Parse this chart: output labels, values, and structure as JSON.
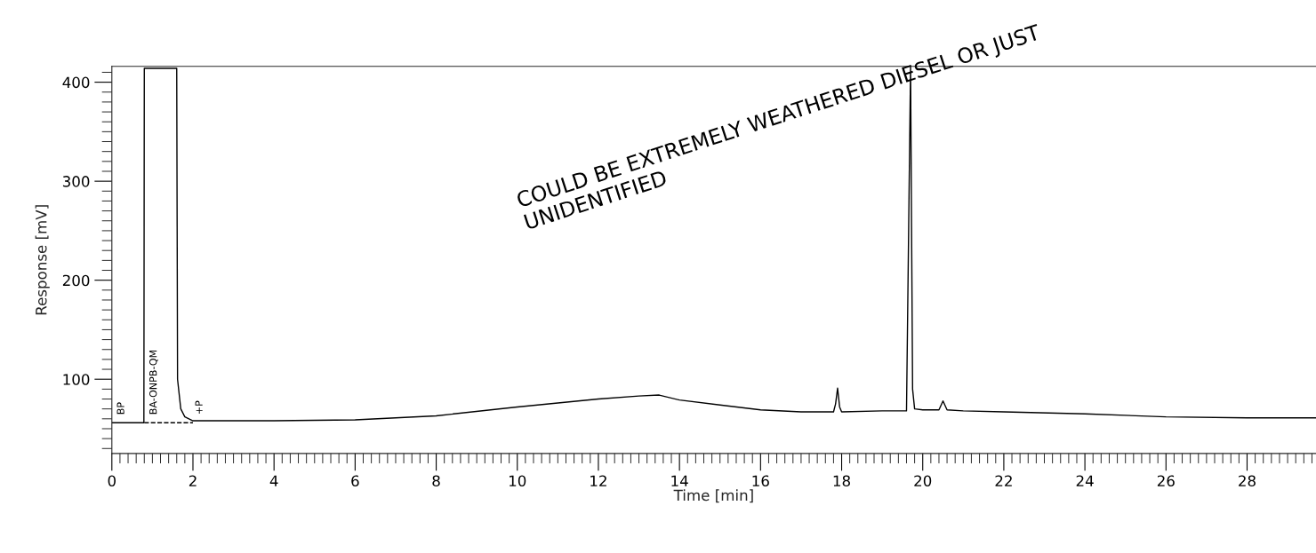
{
  "chart_data": {
    "type": "line",
    "xlabel": "Time [min]",
    "ylabel": "Response [mV]",
    "xlim": [
      0,
      29.7
    ],
    "xticks": [
      0,
      2,
      4,
      6,
      8,
      10,
      12,
      14,
      16,
      18,
      20,
      22,
      24,
      26,
      28
    ],
    "ylim": [
      25,
      416
    ],
    "yticks": [
      100,
      200,
      300,
      400
    ],
    "grid": false,
    "legend": false,
    "marker": "none",
    "series": [
      {
        "color": "#000000",
        "line_style": "solid",
        "x": [
          0,
          0.79,
          0.8,
          0.82,
          1.6,
          1.62,
          1.7,
          1.8,
          2,
          4,
          6,
          8,
          10,
          11,
          12,
          13,
          13.5,
          14,
          15,
          16,
          17,
          17.8,
          17.85,
          17.9,
          17.95,
          18.0,
          19,
          19.6,
          19.7,
          19.75,
          19.8,
          20,
          20.4,
          20.5,
          20.6,
          21,
          22,
          24,
          26,
          28,
          29.7
        ],
        "values": [
          56,
          56,
          414,
          414,
          414,
          100,
          70,
          62,
          58,
          58,
          59,
          63,
          72,
          76,
          80,
          83,
          84,
          79,
          74,
          69,
          67,
          67,
          75,
          91,
          72,
          67,
          68,
          68,
          416,
          90,
          70,
          69,
          69,
          78,
          69,
          68,
          67,
          65,
          62,
          61,
          61
        ]
      },
      {
        "color": "#000000",
        "line_style": "dashed",
        "x": [
          0.8,
          2.0
        ],
        "values": [
          56,
          56
        ]
      }
    ],
    "annotations": [
      "COULD BE EXTREMELY WEATHERED DIESEL OR JUST UNIDENTIFIED",
      "BP",
      "BA-ONPB-QM",
      "+P"
    ]
  }
}
